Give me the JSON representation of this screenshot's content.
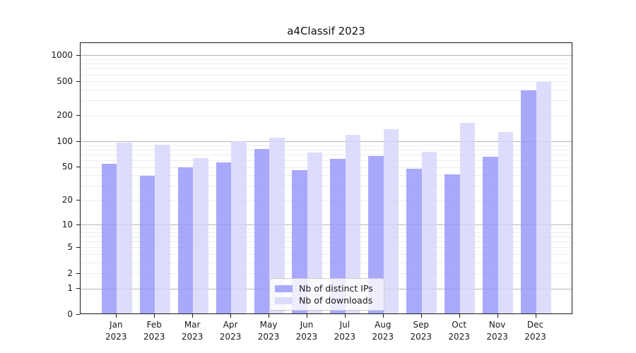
{
  "chart_data": {
    "type": "bar",
    "title": "a4Classif 2023",
    "categories": [
      {
        "label": "Jan",
        "year": "2023"
      },
      {
        "label": "Feb",
        "year": "2023"
      },
      {
        "label": "Mar",
        "year": "2023"
      },
      {
        "label": "Apr",
        "year": "2023"
      },
      {
        "label": "May",
        "year": "2023"
      },
      {
        "label": "Jun",
        "year": "2023"
      },
      {
        "label": "Jul",
        "year": "2023"
      },
      {
        "label": "Aug",
        "year": "2023"
      },
      {
        "label": "Sep",
        "year": "2023"
      },
      {
        "label": "Oct",
        "year": "2023"
      },
      {
        "label": "Nov",
        "year": "2023"
      },
      {
        "label": "Dec",
        "year": "2023"
      }
    ],
    "series": [
      {
        "name": "Nb of distinct IPs",
        "color": "#a9a9fb",
        "fill": "rgba(150,150,250,0.82)",
        "values": [
          53,
          38,
          48,
          55,
          79,
          45,
          61,
          66,
          46,
          40,
          64,
          382
        ]
      },
      {
        "name": "Nb of downloads",
        "color": "#dcdcfa",
        "fill": "rgba(213,213,250,0.82)",
        "values": [
          94,
          89,
          62,
          97,
          108,
          72,
          115,
          135,
          73,
          160,
          126,
          480
        ]
      }
    ],
    "y_axis": {
      "scale": "log1p",
      "ticks": [
        0,
        1,
        2,
        5,
        10,
        20,
        50,
        100,
        200,
        500,
        1000
      ],
      "ylim": [
        0,
        1400
      ],
      "gridlines_major": [
        1,
        10,
        100,
        1000
      ],
      "gridlines_minor": [
        2,
        3,
        4,
        5,
        6,
        7,
        8,
        9,
        20,
        30,
        40,
        50,
        60,
        70,
        80,
        90,
        200,
        300,
        400,
        500,
        600,
        700,
        800,
        900
      ],
      "grid_major_color": "#b5b5b5",
      "grid_minor_color": "#ededed"
    },
    "legend_position": "bottom-center"
  }
}
